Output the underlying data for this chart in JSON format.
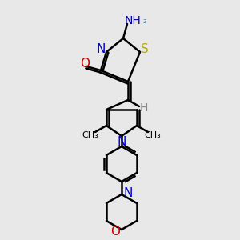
{
  "background_color": "#e8e8e8",
  "atoms": {
    "S": {
      "color": "#ccaa00",
      "label": "S"
    },
    "N": {
      "color": "#0000cc",
      "label": "N"
    },
    "O_red": {
      "color": "#cc0000",
      "label": "O"
    },
    "O_morph": {
      "color": "#cc0000",
      "label": "O"
    },
    "C": {
      "color": "#000000",
      "label": ""
    },
    "H_gray": {
      "color": "#888888",
      "label": "H"
    }
  },
  "line_color": "#000000",
  "line_width": 1.8,
  "font_size_atom": 10,
  "font_size_small": 8
}
